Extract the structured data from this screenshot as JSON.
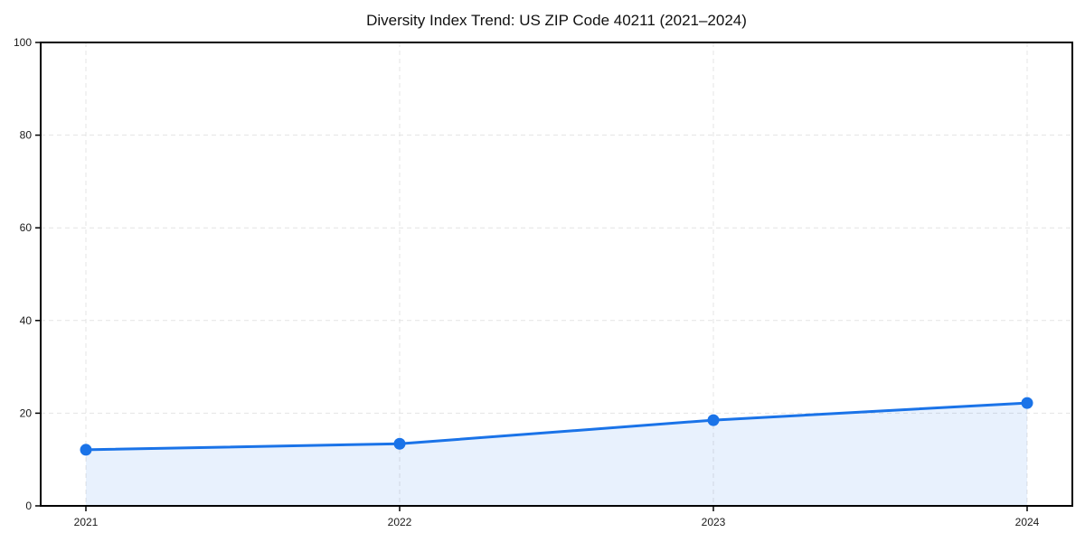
{
  "chart_data": {
    "type": "area",
    "title": "Diversity Index Trend: US ZIP Code 40211 (2021–2024)",
    "x": [
      2021,
      2022,
      2023,
      2024
    ],
    "values": [
      12.1,
      13.4,
      18.5,
      22.2
    ],
    "series_name": "Diversity Index",
    "xlabel": "",
    "ylabel": "",
    "ylim": [
      0,
      100
    ],
    "yticks": [
      0,
      20,
      40,
      60,
      80,
      100
    ],
    "grid": "dashed",
    "legend": "none",
    "line_color": "#1a73e8",
    "marker_color": "#1a73e8",
    "fill_color": "rgba(26,115,232,0.10)",
    "grid_color": "#e4e4e4",
    "spine_color": "#000000"
  }
}
